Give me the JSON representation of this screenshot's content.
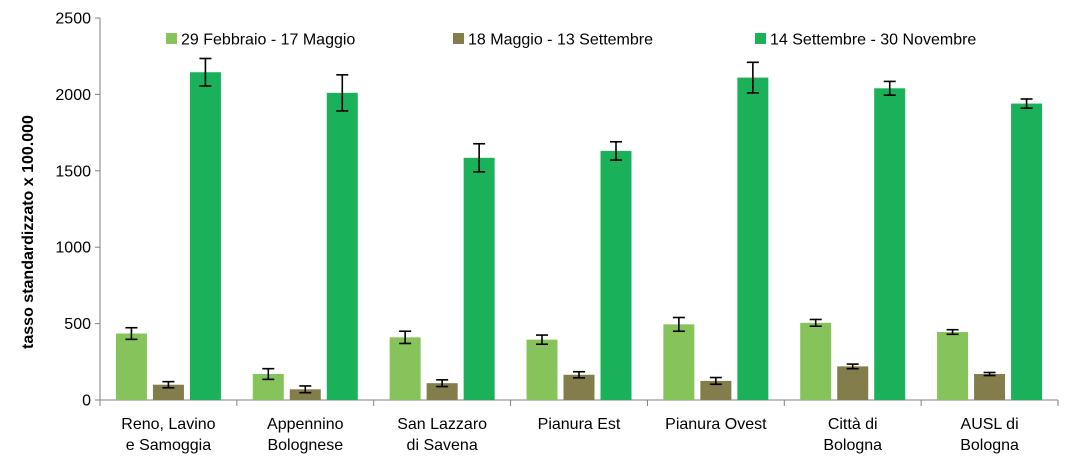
{
  "chart_data": {
    "type": "bar",
    "title": "",
    "xlabel": "",
    "ylabel": "tasso standardizzato x 100.000",
    "ylim": [
      0,
      2500
    ],
    "yticks": [
      0,
      500,
      1000,
      1500,
      2000,
      2500
    ],
    "grid": false,
    "legend_position": "top",
    "categories": [
      [
        "Reno, Lavino",
        "e Samoggia"
      ],
      [
        "Appennino",
        "Bolognese"
      ],
      [
        "San Lazzaro",
        "di Savena"
      ],
      [
        "Pianura Est"
      ],
      [
        "Pianura Ovest"
      ],
      [
        "Città di",
        "Bologna"
      ],
      [
        "AUSL di",
        "Bologna"
      ]
    ],
    "series": [
      {
        "name": "29 Febbraio - 17 Maggio",
        "color": "#86c35a",
        "values": [
          435,
          170,
          410,
          395,
          495,
          505,
          445
        ],
        "errors": [
          38,
          35,
          40,
          30,
          45,
          22,
          15
        ]
      },
      {
        "name": "18 Maggio - 13 Settembre",
        "color": "#837c4b",
        "values": [
          100,
          70,
          110,
          165,
          125,
          220,
          170
        ],
        "errors": [
          20,
          22,
          22,
          20,
          22,
          15,
          10
        ]
      },
      {
        "name": "14 Settembre - 30 Novembre",
        "color": "#1bb15a",
        "values": [
          2145,
          2010,
          1585,
          1630,
          2110,
          2040,
          1940
        ],
        "errors": [
          90,
          118,
          92,
          60,
          100,
          45,
          30
        ]
      }
    ]
  }
}
